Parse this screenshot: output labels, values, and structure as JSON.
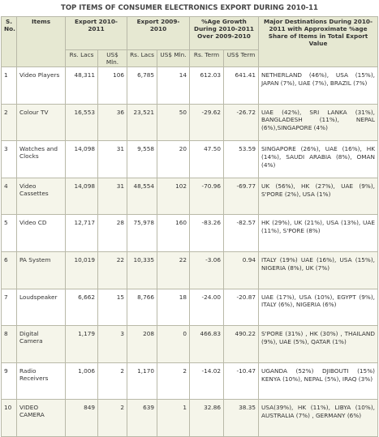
{
  "header": {
    "title": "TOP ITEMS OF CONSUMER ELECTRONICS EXPORT DURING 2010-11",
    "columns": [
      "S. No.",
      "Items",
      "Export 2010-2011",
      "Export 2009-2010",
      "%Age Growth During 2010-2011 Over 2009-2010",
      "Major Destinations During 2010-2011 with Approximate %age Share of Items in Total Export Value"
    ],
    "subcolumns": [
      "Rs. Lacs",
      "US$ Mln.",
      "Rs. Lacs",
      "US$ Mln.",
      "Rs. Term",
      "US$ Term"
    ]
  },
  "table": {
    "rows": [
      [
        "1",
        "Video Players",
        "48,311",
        "106",
        "6,785",
        "14",
        "612.03",
        "641.41",
        "NETHERLAND (46%), USA (15%), JAPAN (7%), UAE (7%), BRAZIL (7%)"
      ],
      [
        "2",
        "Colour TV",
        "16,553",
        "36",
        "23,521",
        "50",
        "-29.62",
        "-26.72",
        "UAE (42%), SRI LANKA (31%), BANGLADESH (11%), NEPAL (6%),SINGAPORE (4%)"
      ],
      [
        "3",
        "Watches and Clocks",
        "14,098",
        "31",
        "9,558",
        "20",
        "47.50",
        "53.59",
        "SINGAPORE (26%), UAE (16%), HK (14%), SAUDI ARABIA (8%), OMAN (4%)"
      ],
      [
        "4",
        "Video Cassettes",
        "14,098",
        "31",
        "48,554",
        "102",
        "-70.96",
        "-69.77",
        "UK (56%), HK (27%), UAE (9%), S'PORE (2%), USA (1%)"
      ],
      [
        "5",
        "Video CD",
        "12,717",
        "28",
        "75,978",
        "160",
        "-83.26",
        "-82.57",
        "HK (29%), UK (21%), USA (13%), UAE (11%), S'PORE (8%)"
      ],
      [
        "6",
        "PA System",
        "10,019",
        "22",
        "10,335",
        "22",
        "-3.06",
        "0.94",
        "ITALY (19%) UAE (16%), USA (15%), NIGERIA (8%), UK (7%)"
      ],
      [
        "7",
        "Loudspeaker",
        "6,662",
        "15",
        "8,766",
        "18",
        "-24.00",
        "-20.87",
        "UAE (17%), USA (10%), EGYPT (9%), ITALY (6%), NIGERIA (6%)"
      ],
      [
        "8",
        "Digital Camera",
        "1,179",
        "3",
        "208",
        "0",
        "466.83",
        "490.22",
        "S'PORE (31%) , HK (30%) , THAILAND (9%), UAE (5%), QATAR (1%)"
      ],
      [
        "9",
        "Radio Receivers",
        "1,006",
        "2",
        "1,170",
        "2",
        "-14.02",
        "-10.47",
        "UGANDA (52%) DJIBOUTI (15%) KENYA (10%), NEPAL (5%), IRAQ (3%)"
      ],
      [
        "10",
        "VIDEO CAMERA",
        "849",
        "2",
        "639",
        "1",
        "32.86",
        "38.35",
        "USA(39%), HK (11%), LIBYA (10%), AUSTRALIA (7%) , GERMANY (6%)"
      ]
    ]
  }
}
